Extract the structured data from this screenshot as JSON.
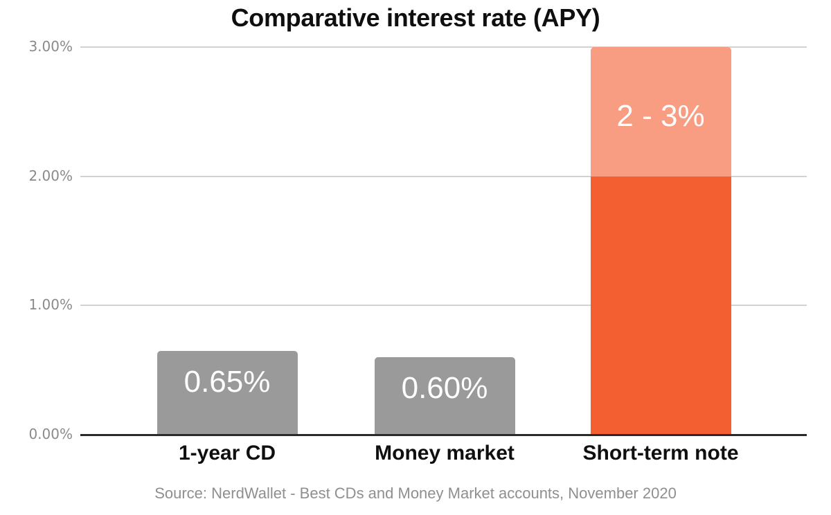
{
  "chart_data": {
    "type": "bar",
    "title": "Comparative interest rate (APY)",
    "source": "Source: NerdWallet - Best CDs and Money Market accounts, November 2020",
    "categories": [
      "1-year CD",
      "Money market",
      "Short-term note"
    ],
    "bars": [
      {
        "category": "1-year CD",
        "value": 0.65,
        "segments": [
          {
            "from": 0,
            "to": 0.65,
            "color": "#9A9A9A"
          }
        ],
        "label": {
          "text": "0.65%",
          "color": "#FFFFFF",
          "position": "inside-top"
        }
      },
      {
        "category": "Money market",
        "value": 0.6,
        "segments": [
          {
            "from": 0,
            "to": 0.6,
            "color": "#9A9A9A"
          }
        ],
        "label": {
          "text": "0.60%",
          "color": "#FFFFFF",
          "position": "inside-top"
        }
      },
      {
        "category": "Short-term note",
        "value_range": [
          2,
          3
        ],
        "segments": [
          {
            "from": 0,
            "to": 2.0,
            "color": "#F45F32"
          },
          {
            "from": 2.0,
            "to": 3.0,
            "color": "#F99D82"
          }
        ],
        "label": {
          "text": "2 - 3%",
          "color": "#FFFFFF",
          "position": "segment-center"
        }
      }
    ],
    "y_axis": {
      "range": [
        0,
        3
      ],
      "grid": true,
      "ticks": [
        {
          "value": 0,
          "label": "0.00%"
        },
        {
          "value": 1,
          "label": "1.00%"
        },
        {
          "value": 2,
          "label": "2.00%"
        },
        {
          "value": 3,
          "label": "3.00%"
        }
      ]
    },
    "legend": null,
    "colors": {
      "bar_gray": "#9A9A9A",
      "orange_solid": "#F45F32",
      "orange_light": "#F99D82",
      "grid_line": "#D2D2D2",
      "axis_line": "#2A2A2A",
      "tick_label": "#8A8A8A",
      "source_text": "#8F8F8F",
      "title_text": "#0F0F0F",
      "value_label": "#FFFFFF"
    }
  }
}
